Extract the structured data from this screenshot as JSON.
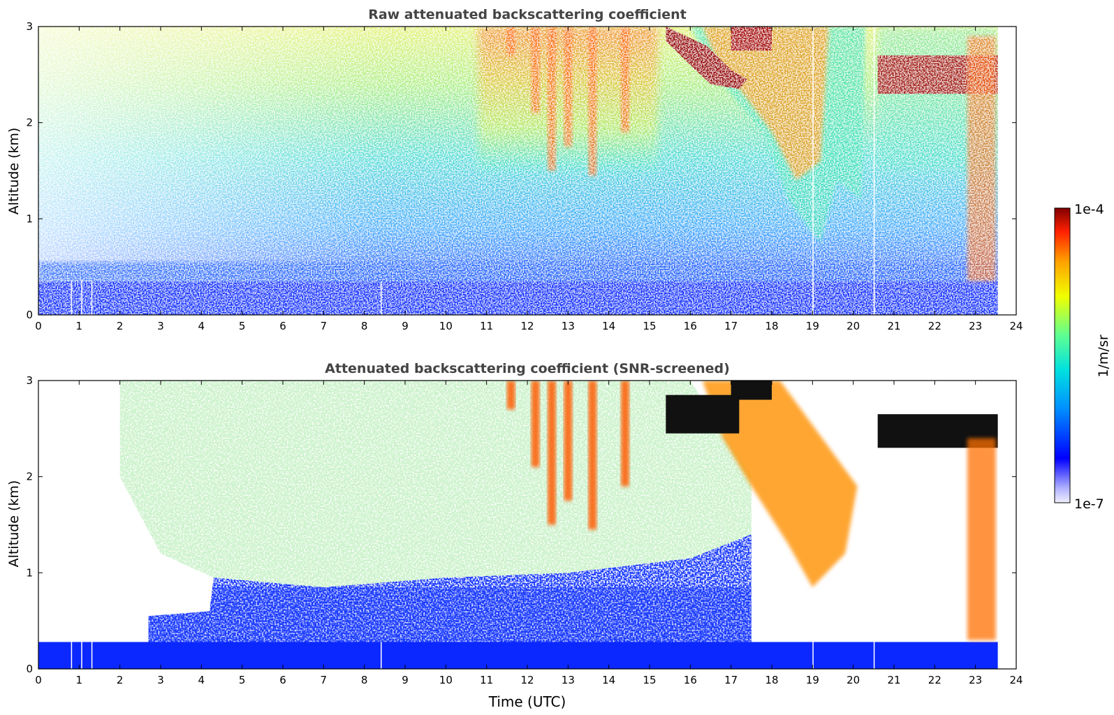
{
  "chart_data": [
    {
      "type": "heatmap",
      "title": "Raw attenuated backscattering coefficient",
      "xlabel": "",
      "ylabel": "Altitude (km)",
      "xlim": [
        0,
        24
      ],
      "ylim": [
        0,
        3
      ],
      "xticks": [
        "0",
        "1",
        "2",
        "3",
        "4",
        "5",
        "6",
        "7",
        "8",
        "9",
        "10",
        "11",
        "12",
        "13",
        "14",
        "15",
        "16",
        "17",
        "18",
        "19",
        "20",
        "21",
        "22",
        "23",
        "24"
      ],
      "yticks": [
        "0",
        "1",
        "2",
        "3"
      ],
      "grid": false,
      "data_end_hour": 23.55,
      "gap_hours": [
        0.8,
        1.05,
        1.3,
        8.4,
        19.0,
        20.5
      ],
      "features": [
        {
          "label": "surface layer",
          "start_hour": 0,
          "end_hour": 23.55,
          "top_km": 0.35
        },
        {
          "label": "cloud streaks",
          "start_hour": 10.8,
          "end_hour": 15.2,
          "top_km": 3.0,
          "bottom_km": 1.5
        },
        {
          "label": "cloud descending",
          "start_hour": 16.0,
          "end_hour": 20.3,
          "top_km": 3.0,
          "bottom_km": 0.7
        },
        {
          "label": "cloud top layer",
          "start_hour": 20.6,
          "end_hour": 23.55,
          "top_km": 2.7,
          "bottom_km": 2.3
        },
        {
          "label": "fall streak",
          "start_hour": 22.8,
          "end_hour": 23.5,
          "top_km": 2.9,
          "bottom_km": 0.3
        }
      ]
    },
    {
      "type": "heatmap",
      "title": "Attenuated backscattering coefficient (SNR-screened)",
      "xlabel": "Time (UTC)",
      "ylabel": "Altitude (km)",
      "xlim": [
        0,
        24
      ],
      "ylim": [
        0,
        3
      ],
      "xticks": [
        "0",
        "1",
        "2",
        "3",
        "4",
        "5",
        "6",
        "7",
        "8",
        "9",
        "10",
        "11",
        "12",
        "13",
        "14",
        "15",
        "16",
        "17",
        "18",
        "19",
        "20",
        "21",
        "22",
        "23",
        "24"
      ],
      "yticks": [
        "0",
        "1",
        "2",
        "3"
      ],
      "grid": false,
      "data_end_hour": 23.55,
      "screened_surface_top_km": 0.28,
      "mixed_layer_top_km": 0.9
    }
  ],
  "colorbar": {
    "label": "1/m/sr",
    "max_label": "1e-4",
    "min_label": "1e-7",
    "scale": "log",
    "colors": [
      "#f0f0ff",
      "#b0b0ff",
      "#0000ff",
      "#0090ff",
      "#00e0e0",
      "#60ff90",
      "#f0ff00",
      "#ffa000",
      "#ff2000",
      "#800000"
    ]
  }
}
